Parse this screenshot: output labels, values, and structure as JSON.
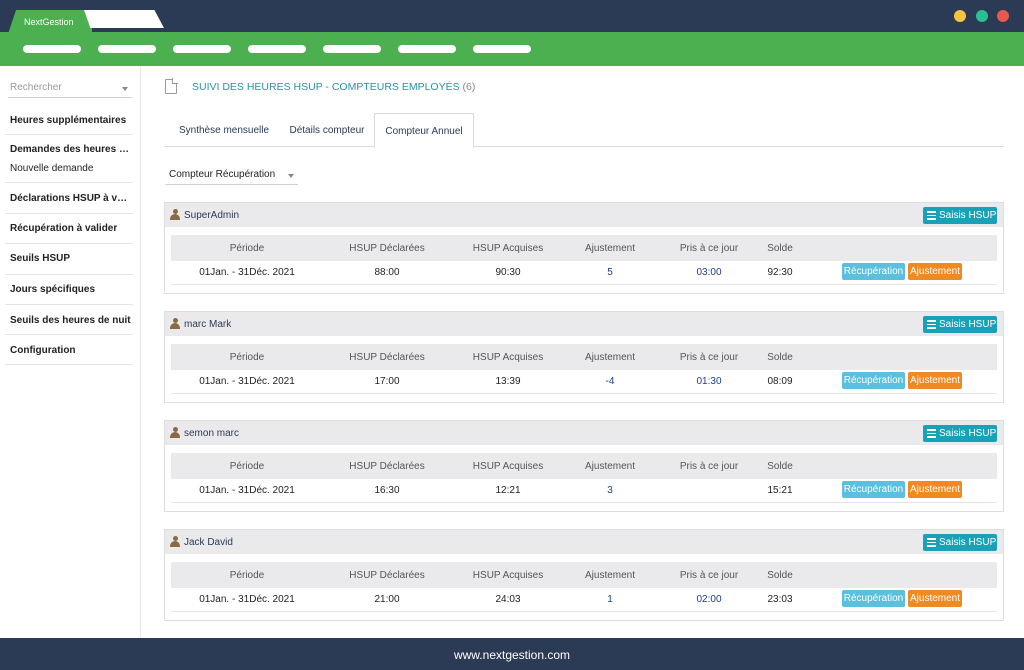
{
  "app": {
    "tab_title": "NextGestion"
  },
  "window_controls": {
    "colors": [
      "#f4c542",
      "#2bbf8f",
      "#e8584f"
    ]
  },
  "sidebar": {
    "search_placeholder": "Rechercher",
    "items": [
      {
        "label": "Heures supplémentaires"
      },
      {
        "label": "Demandes des heures s...",
        "sub": "Nouvelle demande"
      },
      {
        "label": "Déclarations HSUP à val..."
      },
      {
        "label": "Récupération à valider"
      },
      {
        "label": "Seuils HSUP"
      },
      {
        "label": "Jours spécifiques"
      },
      {
        "label": "Seuils des heures de nuit"
      },
      {
        "label": "Configuration"
      }
    ]
  },
  "main": {
    "title": "SUIVI DES HEURES HSUP - COMPTEURS EMPLOYÉS",
    "count": "(6)",
    "tabs": [
      {
        "label": "Synthèse mensuelle"
      },
      {
        "label": "Détails compteur"
      },
      {
        "label": "Compteur Annuel"
      }
    ],
    "counter_select": "Compteur Récupération",
    "columns": [
      "Période",
      "HSUP Déclarées",
      "HSUP Acquises",
      "Ajustement",
      "Pris à ce jour",
      "Solde"
    ],
    "saisis_label": "Saisis HSUP",
    "recup_label": "Récupération",
    "ajust_label": "Ajustement",
    "employees": [
      {
        "name": "SuperAdmin",
        "period": "01Jan. - 31Déc. 2021",
        "declared": "88:00",
        "acquired": "90:30",
        "adjustment": "5",
        "taken": "03:00",
        "balance": "92:30"
      },
      {
        "name": "marc Mark",
        "period": "01Jan. - 31Déc. 2021",
        "declared": "17:00",
        "acquired": "13:39",
        "adjustment": "-4",
        "taken": "01:30",
        "balance": "08:09"
      },
      {
        "name": "semon marc",
        "period": "01Jan. - 31Déc. 2021",
        "declared": "16:30",
        "acquired": "12:21",
        "adjustment": "3",
        "taken": "",
        "balance": "15:21"
      },
      {
        "name": "Jack David",
        "period": "01Jan. - 31Déc. 2021",
        "declared": "21:00",
        "acquired": "24:03",
        "adjustment": "1",
        "taken": "02:00",
        "balance": "23:03"
      }
    ]
  },
  "footer": {
    "text": "www.nextgestion.com"
  }
}
